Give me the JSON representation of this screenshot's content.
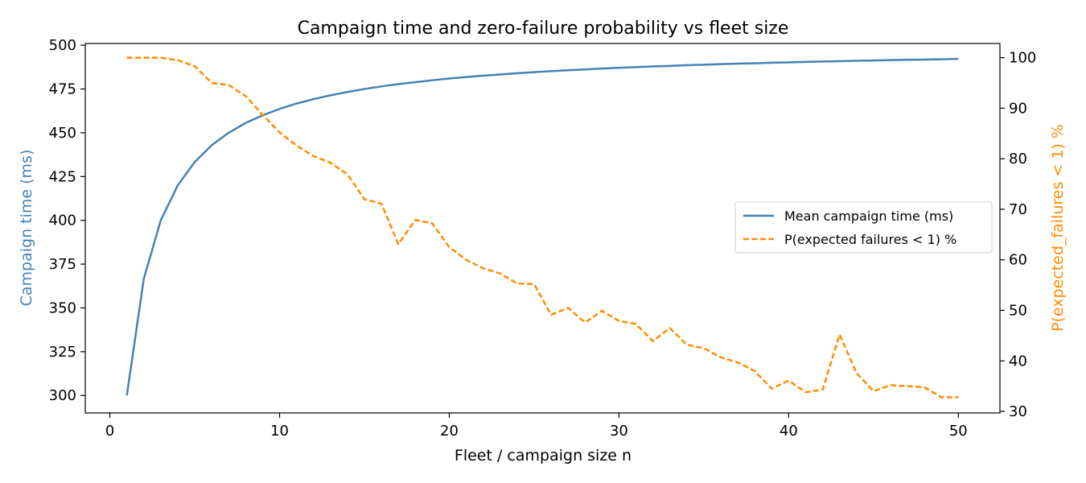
{
  "chart_data": {
    "type": "line",
    "title": "Campaign time and zero-failure probability vs fleet size",
    "xlabel": "Fleet / campaign size  n",
    "ylabel": "Campaign time (ms)",
    "y2label": "P(expected_failures < 1)  %",
    "xlim": [
      -1.45,
      52.45
    ],
    "ylim": [
      290,
      501
    ],
    "y2lim": [
      29.7,
      102.8
    ],
    "xticks": [
      0,
      10,
      20,
      30,
      40,
      50
    ],
    "yticks": [
      300,
      325,
      350,
      375,
      400,
      425,
      450,
      475,
      500
    ],
    "y2ticks": [
      30,
      40,
      50,
      60,
      70,
      80,
      90,
      100
    ],
    "grid": false,
    "legend_position": "center-right",
    "colors": {
      "time": "#4682b4",
      "probability": "#ff8c00"
    },
    "x": [
      1,
      2,
      3,
      4,
      5,
      6,
      7,
      8,
      9,
      10,
      11,
      12,
      13,
      14,
      15,
      16,
      17,
      18,
      19,
      20,
      21,
      22,
      23,
      24,
      25,
      26,
      27,
      28,
      29,
      30,
      31,
      32,
      33,
      34,
      35,
      36,
      37,
      38,
      39,
      40,
      41,
      42,
      43,
      44,
      45,
      46,
      47,
      48,
      49,
      50
    ],
    "series": [
      {
        "name": "Mean campaign time (ms)",
        "axis": "left",
        "style": "solid",
        "values": [
          300,
          366.7,
          400,
          420,
          433.3,
          442.9,
          450,
          455.6,
          460,
          463.6,
          466.7,
          469.2,
          471.4,
          473.3,
          475,
          476.5,
          477.8,
          478.9,
          480,
          481,
          481.8,
          482.6,
          483.3,
          484,
          484.6,
          485.2,
          485.7,
          486.2,
          486.7,
          487.1,
          487.5,
          487.9,
          488.2,
          488.6,
          488.9,
          489.2,
          489.5,
          489.7,
          490,
          490.2,
          490.5,
          490.7,
          490.9,
          491.1,
          491.3,
          491.5,
          491.7,
          491.8,
          492,
          492.2
        ]
      },
      {
        "name": "P(expected failures < 1) %",
        "axis": "right",
        "style": "dashed",
        "values": [
          100,
          100,
          100,
          99.5,
          98.3,
          95,
          94.6,
          92.4,
          88.7,
          85.2,
          82.6,
          80.5,
          79.2,
          76.9,
          72,
          71.1,
          63.1,
          67.9,
          67.2,
          62.5,
          60,
          58.3,
          57.3,
          55.3,
          55.2,
          49.1,
          50.5,
          47.6,
          49.9,
          47.9,
          47.3,
          43.9,
          46.5,
          43.2,
          42.5,
          40.7,
          39.7,
          38,
          34.5,
          36.1,
          33.8,
          34.3,
          45.2,
          37.6,
          34,
          35.2,
          35,
          34.8,
          32.8,
          32.8
        ]
      }
    ]
  }
}
